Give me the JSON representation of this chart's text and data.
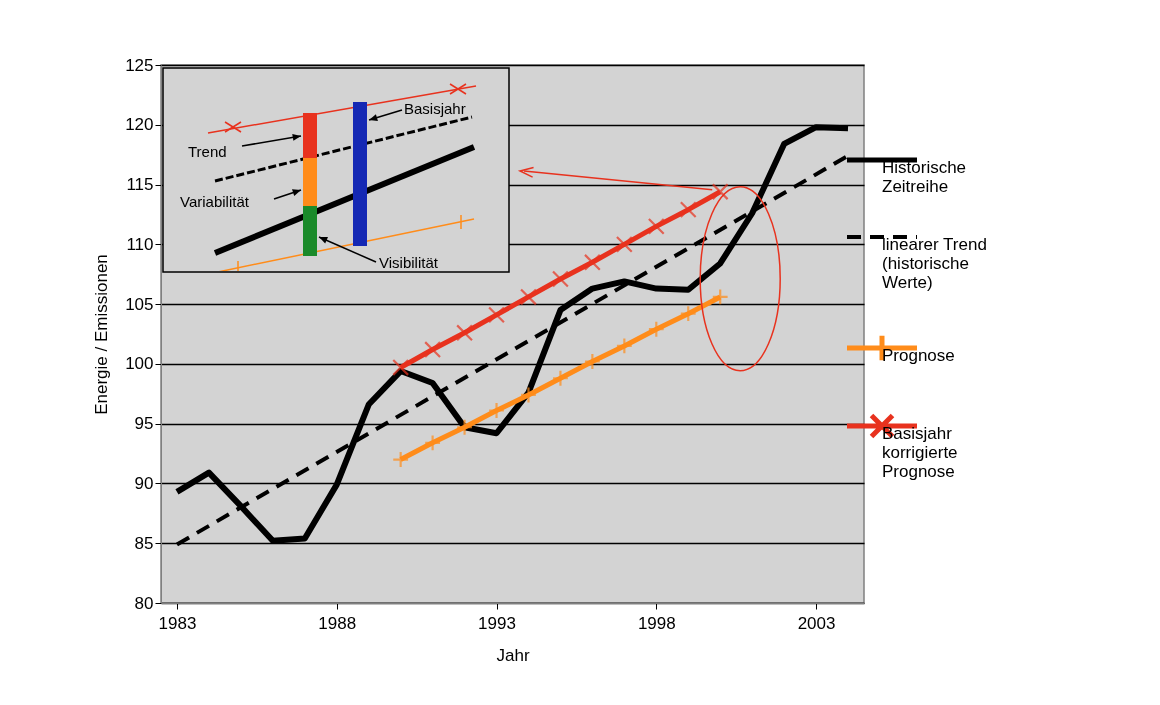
{
  "chart_data": {
    "type": "line",
    "xlabel": "Jahr",
    "ylabel": "Energie / Emissionen",
    "xlim": [
      1982.5,
      2004.5
    ],
    "xticks": [
      1983,
      1988,
      1993,
      1998,
      2003
    ],
    "ylim": [
      80,
      125
    ],
    "yticks": [
      80,
      85,
      90,
      95,
      100,
      105,
      110,
      115,
      120,
      125
    ],
    "grid": "y",
    "legend": "right",
    "annotations": [
      "Trend",
      "Basisjahr",
      "Variabilität",
      "Visibilität"
    ],
    "series": [
      {
        "name": "Historische Zeitreihe",
        "color": "#000000",
        "marker": "none",
        "line_style": "solid",
        "x": [
          1983,
          1984,
          1985,
          1986,
          1987,
          1988,
          1989,
          1990,
          1991,
          1992,
          1993,
          1994,
          1995,
          1996,
          1997,
          1998,
          1999,
          2000,
          2001,
          2002,
          2003,
          2004
        ],
        "values": [
          89.3,
          90.9,
          88.1,
          85.2,
          85.4,
          89.9,
          96.6,
          99.4,
          98.4,
          94.7,
          94.2,
          97.6,
          104.5,
          106.3,
          106.9,
          106.3,
          106.2,
          108.4,
          112.6,
          118.4,
          119.8,
          119.7
        ]
      },
      {
        "name": "linearer Trend (historische Werte)",
        "color": "#000000",
        "marker": "none",
        "line_style": "dashed",
        "x": [
          1983,
          2004
        ],
        "values": [
          84.9,
          117.4
        ]
      },
      {
        "name": "Prognose",
        "color": "#ff8c1a",
        "marker": "plus",
        "line_style": "solid",
        "x": [
          1990,
          1991,
          1992,
          1993,
          1994,
          1995,
          1996,
          1997,
          1998,
          1999,
          2000
        ],
        "values": [
          92.0,
          93.4,
          94.7,
          96.1,
          97.4,
          98.8,
          100.2,
          101.5,
          102.9,
          104.2,
          105.6
        ]
      },
      {
        "name": "Basisjahr korrigierte Prognose",
        "color": "#e8321e",
        "marker": "cross",
        "line_style": "solid",
        "x": [
          1990,
          1991,
          1992,
          1993,
          1994,
          1995,
          1996,
          1997,
          1998,
          1999,
          2000
        ],
        "values": [
          99.7,
          101.2,
          102.6,
          104.1,
          105.6,
          107.1,
          108.5,
          110.0,
          111.5,
          112.9,
          114.4
        ]
      }
    ]
  }
}
